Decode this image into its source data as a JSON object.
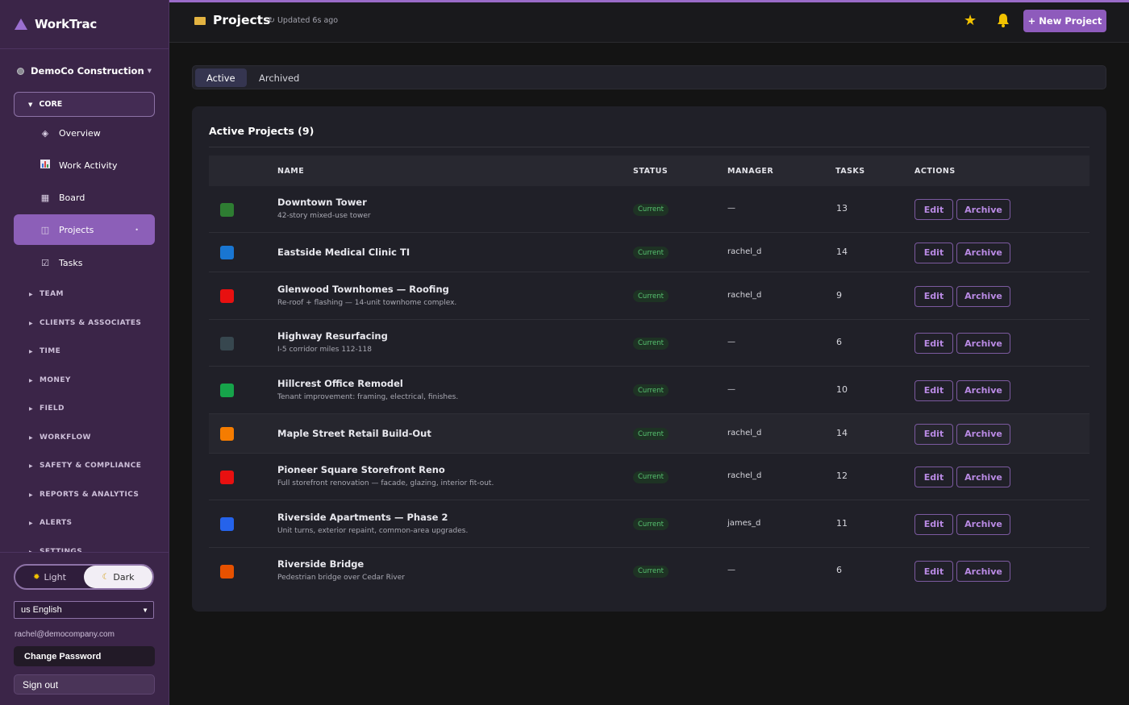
{
  "sidebar": {
    "brand": "WorkTrac",
    "org": "DemoCo Construction",
    "core_label": "CORE",
    "core_items": [
      {
        "label": "Overview",
        "icon": "diamond-icon"
      },
      {
        "label": "Work Activity",
        "icon": "bar-chart-icon"
      },
      {
        "label": "Board",
        "icon": "grid-icon"
      },
      {
        "label": "Projects",
        "icon": "projects-icon",
        "active": true
      },
      {
        "label": "Tasks",
        "icon": "checkbox-icon"
      }
    ],
    "sections": [
      "TEAM",
      "CLIENTS & ASSOCIATES",
      "TIME",
      "MONEY",
      "FIELD",
      "WORKFLOW",
      "SAFETY & COMPLIANCE",
      "REPORTS & ANALYTICS",
      "ALERTS",
      "SETTINGS"
    ],
    "theme": {
      "light": "Light",
      "dark": "Dark",
      "selected": "Dark"
    },
    "language": "us English",
    "email": "rachel@democompany.com",
    "change_password": "Change Password",
    "sign_out": "Sign out"
  },
  "header": {
    "title": "Projects",
    "updated": "↻ Updated 6s ago",
    "new_project": "+ New Project"
  },
  "tabs": [
    {
      "label": "Active",
      "active": true
    },
    {
      "label": "Archived",
      "active": false
    }
  ],
  "card": {
    "title": "Active Projects (9)",
    "columns": [
      "NAME",
      "STATUS",
      "MANAGER",
      "TASKS",
      "ACTIONS"
    ],
    "edit_label": "Edit",
    "archive_label": "Archive",
    "rows": [
      {
        "name": "Downtown Tower",
        "desc": "42-story mixed-use tower",
        "status": "Current",
        "manager": "—",
        "tasks": "13",
        "color": "#2e7d32"
      },
      {
        "name": "Eastside Medical Clinic TI",
        "desc": "",
        "status": "Current",
        "manager": "rachel_d",
        "tasks": "14",
        "color": "#1976d2"
      },
      {
        "name": "Glenwood Townhomes — Roofing",
        "desc": "Re-roof + flashing — 14-unit townhome complex.",
        "status": "Current",
        "manager": "rachel_d",
        "tasks": "9",
        "color": "#e81010"
      },
      {
        "name": "Highway Resurfacing",
        "desc": "I-5 corridor miles 112-118",
        "status": "Current",
        "manager": "—",
        "tasks": "6",
        "color": "#37474f"
      },
      {
        "name": "Hillcrest Office Remodel",
        "desc": "Tenant improvement: framing, electrical, finishes.",
        "status": "Current",
        "manager": "—",
        "tasks": "10",
        "color": "#16a34a"
      },
      {
        "name": "Maple Street Retail Build-Out",
        "desc": "",
        "status": "Current",
        "manager": "rachel_d",
        "tasks": "14",
        "color": "#f57c00"
      },
      {
        "name": "Pioneer Square Storefront Reno",
        "desc": "Full storefront renovation — facade, glazing, interior fit-out.",
        "status": "Current",
        "manager": "rachel_d",
        "tasks": "12",
        "color": "#e81010"
      },
      {
        "name": "Riverside Apartments — Phase 2",
        "desc": "Unit turns, exterior repaint, common-area upgrades.",
        "status": "Current",
        "manager": "james_d",
        "tasks": "11",
        "color": "#2563eb"
      },
      {
        "name": "Riverside Bridge",
        "desc": "Pedestrian bridge over Cedar River",
        "status": "Current",
        "manager": "—",
        "tasks": "6",
        "color": "#e65100"
      }
    ]
  },
  "colors": {
    "accent": "#8e5bbc",
    "sidebar": "#3b2548",
    "status_green": "#58c471"
  }
}
